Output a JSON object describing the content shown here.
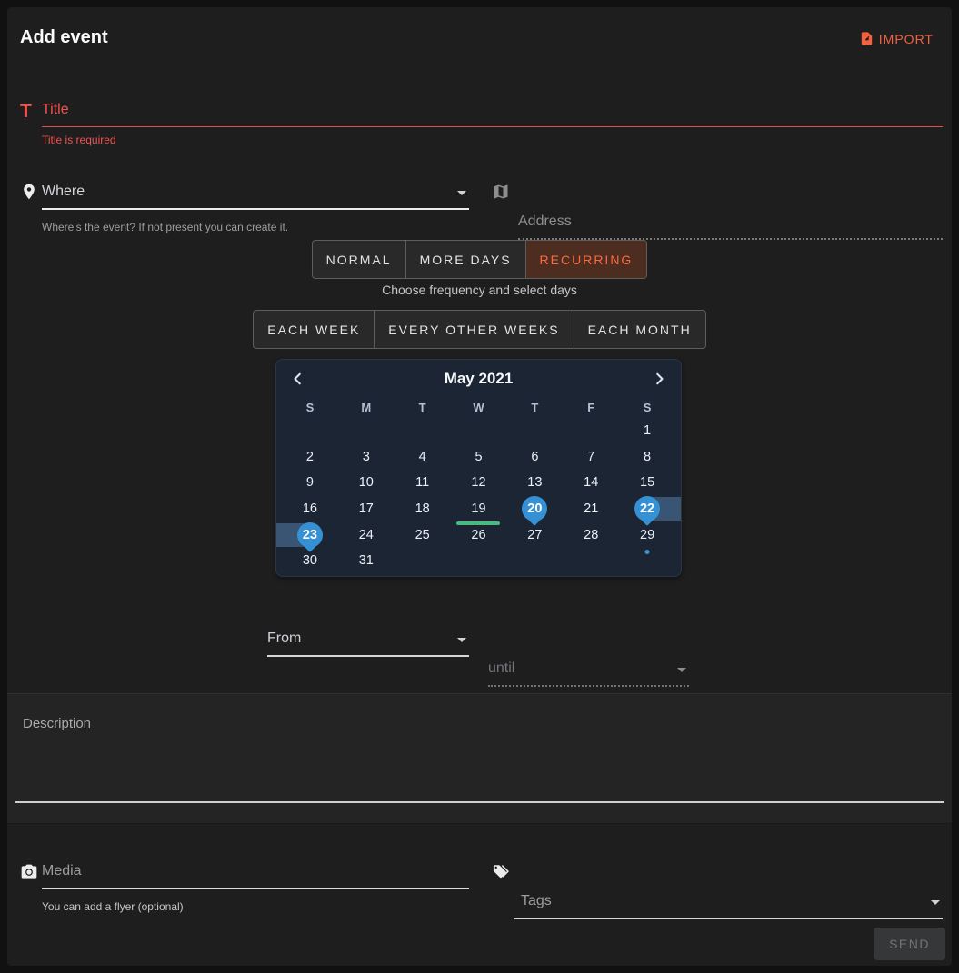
{
  "header": {
    "title": "Add event",
    "import_label": "IMPORT"
  },
  "fields": {
    "title": {
      "placeholder": "Title",
      "error": "Title is required"
    },
    "where": {
      "placeholder": "Where",
      "helper": "Where's the event? If not present you can create it."
    },
    "address": {
      "placeholder": "Address"
    },
    "from": {
      "placeholder": "From"
    },
    "until": {
      "placeholder": "until"
    },
    "description": {
      "placeholder": "Description",
      "value": ""
    },
    "media": {
      "placeholder": "Media",
      "helper": "You can add a flyer (optional)"
    },
    "tags": {
      "placeholder": "Tags"
    }
  },
  "mode_tabs": {
    "items": [
      {
        "label": "NORMAL",
        "selected": false
      },
      {
        "label": "MORE DAYS",
        "selected": false
      },
      {
        "label": "RECURRING",
        "selected": true
      }
    ],
    "caption": "Choose frequency and select days"
  },
  "frequency_tabs": {
    "items": [
      {
        "label": "EACH WEEK",
        "selected": false
      },
      {
        "label": "EVERY OTHER WEEKS",
        "selected": false
      },
      {
        "label": "EACH MONTH",
        "selected": false
      }
    ]
  },
  "calendar": {
    "month_label": "May 2021",
    "weekdays": [
      "S",
      "M",
      "T",
      "W",
      "T",
      "F",
      "S"
    ],
    "weeks": [
      [
        {
          "d": ""
        },
        {
          "d": ""
        },
        {
          "d": ""
        },
        {
          "d": ""
        },
        {
          "d": ""
        },
        {
          "d": ""
        },
        {
          "d": "1"
        }
      ],
      [
        {
          "d": "2"
        },
        {
          "d": "3"
        },
        {
          "d": "4"
        },
        {
          "d": "5"
        },
        {
          "d": "6"
        },
        {
          "d": "7"
        },
        {
          "d": "8"
        }
      ],
      [
        {
          "d": "9"
        },
        {
          "d": "10"
        },
        {
          "d": "11"
        },
        {
          "d": "12"
        },
        {
          "d": "13"
        },
        {
          "d": "14"
        },
        {
          "d": "15"
        }
      ],
      [
        {
          "d": "16"
        },
        {
          "d": "17"
        },
        {
          "d": "18"
        },
        {
          "d": "19",
          "marker": "today-underline"
        },
        {
          "d": "20",
          "marker": "selected"
        },
        {
          "d": "21"
        },
        {
          "d": "22",
          "marker": "selected-range-right"
        }
      ],
      [
        {
          "d": "23",
          "marker": "selected-range-left"
        },
        {
          "d": "24"
        },
        {
          "d": "25"
        },
        {
          "d": "26"
        },
        {
          "d": "27"
        },
        {
          "d": "28"
        },
        {
          "d": "29",
          "marker": "dot"
        }
      ],
      [
        {
          "d": "30"
        },
        {
          "d": "31"
        },
        {
          "d": ""
        },
        {
          "d": ""
        },
        {
          "d": ""
        },
        {
          "d": ""
        },
        {
          "d": ""
        }
      ]
    ],
    "selected_days": [
      20,
      22,
      23
    ],
    "today_day": 19,
    "dot_day": 29
  },
  "buttons": {
    "send": "SEND"
  },
  "colors": {
    "accent_orange": "#f4613d",
    "error_red": "#ef5350",
    "selection_blue": "#3691d4",
    "range_band_blue": "#3a5474",
    "today_green": "#4ab97e",
    "calendar_bg": "#1b2534",
    "card_bg": "#1e1e1f"
  }
}
